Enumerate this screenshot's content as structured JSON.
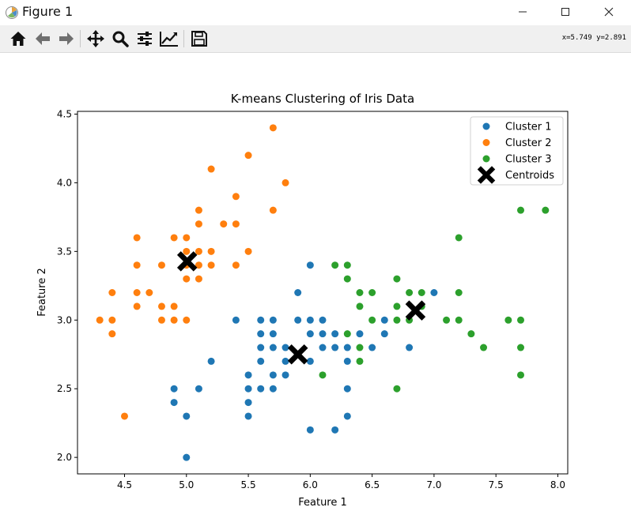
{
  "window": {
    "title": "Figure 1"
  },
  "toolbar": {
    "buttons": [
      {
        "name": "home",
        "icon": "home-icon"
      },
      {
        "name": "back",
        "icon": "arrow-left-icon"
      },
      {
        "name": "forward",
        "icon": "arrow-right-icon"
      },
      {
        "name": "pan",
        "icon": "move-icon"
      },
      {
        "name": "zoom",
        "icon": "magnifier-icon"
      },
      {
        "name": "configure-subplots",
        "icon": "sliders-icon"
      },
      {
        "name": "edit-axis",
        "icon": "chart-line-icon"
      },
      {
        "name": "save",
        "icon": "floppy-disk-icon"
      }
    ],
    "coordinates": "x=5.749 y=2.891"
  },
  "chart_data": {
    "type": "scatter",
    "title": "K-means Clustering of Iris Data",
    "xlabel": "Feature 1",
    "ylabel": "Feature 2",
    "xlim": [
      4.12,
      8.08
    ],
    "ylim": [
      1.88,
      4.52
    ],
    "xticks": [
      "4.5",
      "5.0",
      "5.5",
      "6.0",
      "6.5",
      "7.0",
      "7.5",
      "8.0"
    ],
    "yticks": [
      "2.0",
      "2.5",
      "3.0",
      "3.5",
      "4.0",
      "4.5"
    ],
    "grid": false,
    "legend": {
      "placement": "top-right"
    },
    "series": [
      {
        "name": "Cluster 1",
        "color": "#1f77b4",
        "marker": "circle",
        "points": [
          [
            5.0,
            2.0
          ],
          [
            4.9,
            2.4
          ],
          [
            4.9,
            2.5
          ],
          [
            5.0,
            2.3
          ],
          [
            5.1,
            2.5
          ],
          [
            5.2,
            2.7
          ],
          [
            5.4,
            3.0
          ],
          [
            5.5,
            2.3
          ],
          [
            5.5,
            2.4
          ],
          [
            5.5,
            2.5
          ],
          [
            5.5,
            2.6
          ],
          [
            5.6,
            2.5
          ],
          [
            5.6,
            2.7
          ],
          [
            5.6,
            2.8
          ],
          [
            5.6,
            2.9
          ],
          [
            5.6,
            3.0
          ],
          [
            5.7,
            2.5
          ],
          [
            5.7,
            2.6
          ],
          [
            5.7,
            2.8
          ],
          [
            5.7,
            2.9
          ],
          [
            5.7,
            3.0
          ],
          [
            5.8,
            2.6
          ],
          [
            5.8,
            2.7
          ],
          [
            5.8,
            2.8
          ],
          [
            5.9,
            3.0
          ],
          [
            5.9,
            3.2
          ],
          [
            6.0,
            2.2
          ],
          [
            6.0,
            2.7
          ],
          [
            6.0,
            2.9
          ],
          [
            6.0,
            3.0
          ],
          [
            6.0,
            3.4
          ],
          [
            6.1,
            2.8
          ],
          [
            6.1,
            2.9
          ],
          [
            6.1,
            3.0
          ],
          [
            6.2,
            2.2
          ],
          [
            6.2,
            2.8
          ],
          [
            6.2,
            2.9
          ],
          [
            6.3,
            2.3
          ],
          [
            6.3,
            2.5
          ],
          [
            6.3,
            2.7
          ],
          [
            6.3,
            2.8
          ],
          [
            6.4,
            2.9
          ],
          [
            6.5,
            2.8
          ],
          [
            6.6,
            2.9
          ],
          [
            6.6,
            3.0
          ],
          [
            6.8,
            2.8
          ],
          [
            7.0,
            3.2
          ]
        ]
      },
      {
        "name": "Cluster 2",
        "color": "#ff7f0e",
        "marker": "circle",
        "points": [
          [
            4.3,
            3.0
          ],
          [
            4.4,
            2.9
          ],
          [
            4.4,
            3.0
          ],
          [
            4.4,
            3.2
          ],
          [
            4.5,
            2.3
          ],
          [
            4.6,
            3.1
          ],
          [
            4.6,
            3.2
          ],
          [
            4.6,
            3.4
          ],
          [
            4.6,
            3.6
          ],
          [
            4.7,
            3.2
          ],
          [
            4.8,
            3.0
          ],
          [
            4.8,
            3.1
          ],
          [
            4.8,
            3.4
          ],
          [
            4.9,
            3.0
          ],
          [
            4.9,
            3.1
          ],
          [
            4.9,
            3.6
          ],
          [
            5.0,
            3.0
          ],
          [
            5.0,
            3.3
          ],
          [
            5.0,
            3.4
          ],
          [
            5.0,
            3.5
          ],
          [
            5.0,
            3.6
          ],
          [
            5.1,
            3.3
          ],
          [
            5.1,
            3.4
          ],
          [
            5.1,
            3.5
          ],
          [
            5.1,
            3.7
          ],
          [
            5.1,
            3.8
          ],
          [
            5.2,
            3.4
          ],
          [
            5.2,
            3.5
          ],
          [
            5.2,
            4.1
          ],
          [
            5.3,
            3.7
          ],
          [
            5.4,
            3.4
          ],
          [
            5.4,
            3.7
          ],
          [
            5.4,
            3.9
          ],
          [
            5.5,
            3.5
          ],
          [
            5.5,
            4.2
          ],
          [
            5.7,
            3.8
          ],
          [
            5.7,
            4.4
          ],
          [
            5.8,
            4.0
          ]
        ]
      },
      {
        "name": "Cluster 3",
        "color": "#2ca02c",
        "marker": "circle",
        "points": [
          [
            6.1,
            2.6
          ],
          [
            6.2,
            3.4
          ],
          [
            6.3,
            2.9
          ],
          [
            6.3,
            3.3
          ],
          [
            6.3,
            3.4
          ],
          [
            6.4,
            2.7
          ],
          [
            6.4,
            2.8
          ],
          [
            6.4,
            3.1
          ],
          [
            6.4,
            3.2
          ],
          [
            6.5,
            3.0
          ],
          [
            6.5,
            3.2
          ],
          [
            6.7,
            2.5
          ],
          [
            6.7,
            3.0
          ],
          [
            6.7,
            3.1
          ],
          [
            6.7,
            3.3
          ],
          [
            6.8,
            3.0
          ],
          [
            6.8,
            3.2
          ],
          [
            6.9,
            3.1
          ],
          [
            6.9,
            3.2
          ],
          [
            7.1,
            3.0
          ],
          [
            7.2,
            3.0
          ],
          [
            7.2,
            3.2
          ],
          [
            7.2,
            3.6
          ],
          [
            7.3,
            2.9
          ],
          [
            7.4,
            2.8
          ],
          [
            7.6,
            3.0
          ],
          [
            7.7,
            2.6
          ],
          [
            7.7,
            2.8
          ],
          [
            7.7,
            3.0
          ],
          [
            7.7,
            3.8
          ],
          [
            7.9,
            3.8
          ]
        ]
      },
      {
        "name": "Centroids",
        "color": "#000000",
        "marker": "x",
        "points": [
          [
            5.006,
            3.428
          ],
          [
            5.9,
            2.75
          ],
          [
            6.85,
            3.07
          ]
        ]
      }
    ]
  }
}
